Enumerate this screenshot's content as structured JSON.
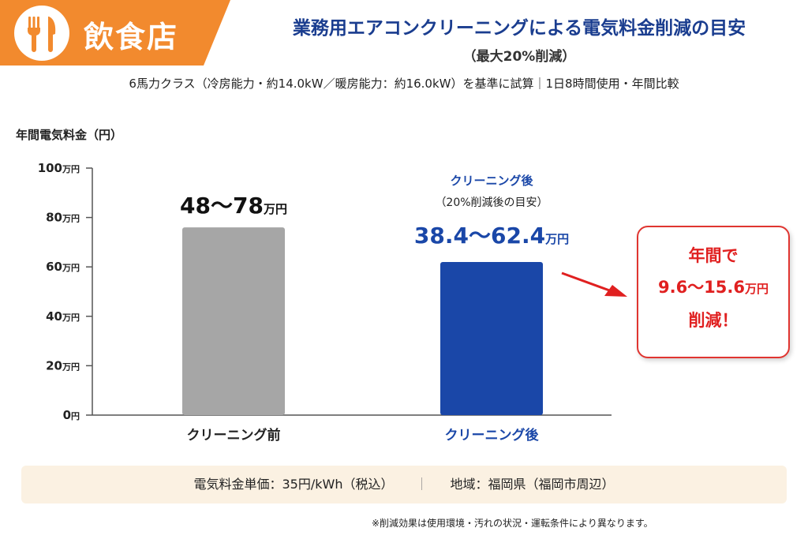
{
  "header": {
    "category_label": "飲食店",
    "category_icon": "fork-knife-icon",
    "title": "業務用エアコンクリーニングによる電気料金削減の目安",
    "subtitle": "（最大20%削減）",
    "conditions": "6馬力クラス（冷房能力・約14.0kW／暖房能力：約16.0kW）を基準に試算｜1日8時間使用・年間比較"
  },
  "chart_data": {
    "type": "bar",
    "ylabel": "年間電気料金（円）",
    "yunit": "万円",
    "ylim": [
      0,
      100
    ],
    "yticks": [
      "0円",
      "20万円",
      "40万円",
      "60万円",
      "80万円",
      "100万円"
    ],
    "ytick_values": [
      0,
      20,
      40,
      60,
      80,
      100
    ],
    "categories": [
      "クリーニング前",
      "クリーニング後"
    ],
    "values": [
      76,
      62
    ],
    "value_labels": [
      {
        "main": "48〜78",
        "unit": "万円"
      },
      {
        "main": "38.4〜62.4",
        "unit": "万円"
      }
    ],
    "after_heading": "クリーニング後",
    "after_note": "（20%削減後の目安）",
    "colors": [
      "#a6a6a6",
      "#1a47a8"
    ],
    "grid": false,
    "legend": "none"
  },
  "callout": {
    "line1": "年間で",
    "amount": "9.6〜15.6",
    "unit": "万円",
    "line3": "削減！",
    "color": "#e02020"
  },
  "info": {
    "price": "電気料金単価：35円/kWh（税込）",
    "separator": "｜",
    "region": "地域：福岡県（福岡市周辺）"
  },
  "footnote": "※削減効果は使用環境・汚れの状況・運転条件により異なります。"
}
